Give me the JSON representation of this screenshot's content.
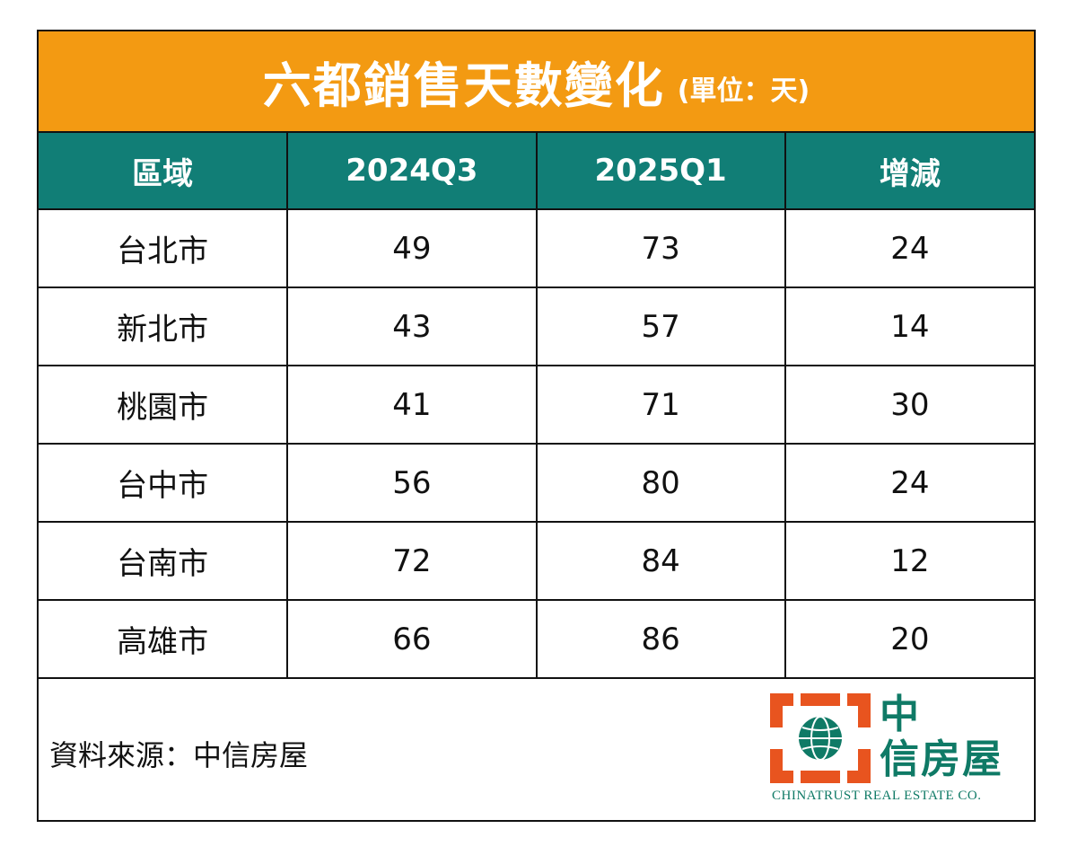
{
  "title": {
    "main": "六都銷售天數變化",
    "unit": "(單位：天)"
  },
  "table": {
    "headers": [
      "區域",
      "2024Q3",
      "2025Q1",
      "增減"
    ],
    "rows": [
      [
        "台北市",
        "49",
        "73",
        "24"
      ],
      [
        "新北市",
        "43",
        "57",
        "14"
      ],
      [
        "桃園市",
        "41",
        "71",
        "30"
      ],
      [
        "台中市",
        "56",
        "80",
        "24"
      ],
      [
        "台南市",
        "72",
        "84",
        "12"
      ],
      [
        "高雄市",
        "66",
        "86",
        "20"
      ]
    ]
  },
  "footer": {
    "source": "資料來源：中信房屋"
  },
  "logo": {
    "cn_line1": "中",
    "cn_line2": "信房屋",
    "en": "CHINATRUST REAL ESTATE CO.",
    "icon": "chinatrust-globe-logo",
    "colors": {
      "orange": "#e8541f",
      "green": "#0f7a66"
    }
  },
  "colors": {
    "title_bg": "#f39a12",
    "header_bg": "#117e76"
  }
}
